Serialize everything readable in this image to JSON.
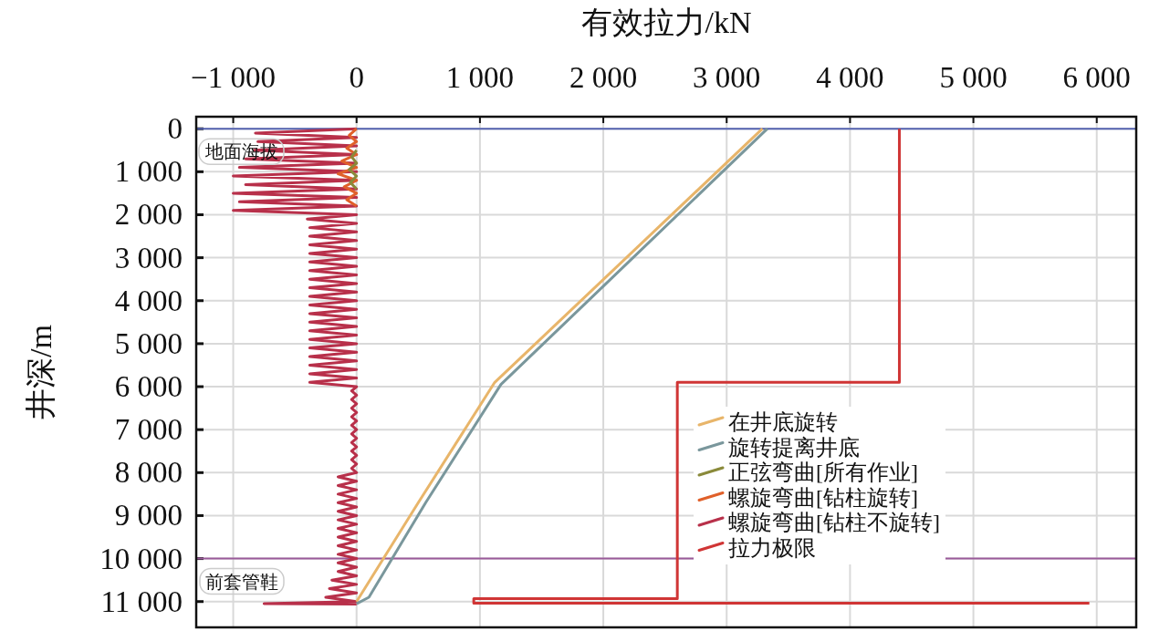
{
  "chart_data": {
    "type": "line",
    "xlabel": "有效拉力/kN",
    "ylabel": "井深/m",
    "xlim": [
      -1300,
      6320
    ],
    "ylim": [
      11600,
      -280
    ],
    "xticks": [
      {
        "value": -1000,
        "label": "−1 000"
      },
      0,
      {
        "value": 1000,
        "label": "1 000"
      },
      {
        "value": 2000,
        "label": "2 000"
      },
      {
        "value": 3000,
        "label": "3 000"
      },
      {
        "value": 4000,
        "label": "4 000"
      },
      {
        "value": 5000,
        "label": "5 000"
      },
      {
        "value": 6000,
        "label": "6 000"
      }
    ],
    "yticks": [
      0,
      {
        "value": 1000,
        "label": "1 000"
      },
      {
        "value": 2000,
        "label": "2 000"
      },
      {
        "value": 3000,
        "label": "3 000"
      },
      {
        "value": 4000,
        "label": "4 000"
      },
      {
        "value": 5000,
        "label": "5 000"
      },
      {
        "value": 6000,
        "label": "6 000"
      },
      {
        "value": 7000,
        "label": "7 000"
      },
      {
        "value": 8000,
        "label": "8 000"
      },
      {
        "value": 9000,
        "label": "9 000"
      },
      {
        "value": 10000,
        "label": "10 000"
      },
      {
        "value": 11000,
        "label": "11 000"
      }
    ],
    "grid": true,
    "legend": "bottom right",
    "ref_lines": [
      {
        "axis": "y",
        "value": 0,
        "label": "地面海拔",
        "color": "#5563b0"
      },
      {
        "axis": "y",
        "value": 10000,
        "label": "前套管鞋",
        "color": "#9a5a9a"
      }
    ],
    "series": [
      {
        "name": "在井底旋转",
        "color": "#e8b56a",
        "x": [
          3290,
          1120,
          500,
          0
        ],
        "values": [
          0,
          5900,
          8700,
          11000
        ]
      },
      {
        "name": "旋转提离井底",
        "color": "#7a979c",
        "x": [
          3330,
          1170,
          560,
          100,
          0
        ],
        "values": [
          0,
          5950,
          8700,
          10900,
          11050
        ]
      },
      {
        "name": "正弦弯曲[所有作业]",
        "color": "#8a8a3a",
        "x": [
          0,
          -40,
          0,
          -60,
          0,
          -50,
          0
        ],
        "values": [
          500,
          650,
          800,
          950,
          1100,
          1250,
          1400
        ]
      },
      {
        "name": "螺旋弯曲[钻柱旋转]",
        "color": "#e0602a",
        "x": [
          0,
          -60,
          0,
          -80,
          0,
          -120,
          0,
          -150,
          0,
          -100,
          0,
          -80,
          0
        ],
        "values": [
          0,
          150,
          300,
          450,
          600,
          750,
          900,
          1050,
          1200,
          1350,
          1500,
          1650,
          1800
        ]
      },
      {
        "name": "螺旋弯曲[钻柱不旋转]",
        "color": "#b8304a",
        "x": [
          0,
          -820,
          0,
          -800,
          0,
          -830,
          0,
          -900,
          0,
          -950,
          0,
          -1000,
          0,
          -900,
          0,
          -1000,
          0,
          -950,
          0,
          -1000,
          0,
          -400,
          0,
          -380,
          0,
          -380,
          0,
          -380,
          0,
          -380,
          0,
          -380,
          0,
          -380,
          0,
          -380,
          0,
          -380,
          0,
          -380,
          0,
          -380,
          0,
          -380,
          0,
          -380,
          0,
          -380,
          0,
          -380,
          0,
          -380,
          0,
          -380,
          0,
          -380,
          0,
          -380,
          0,
          -380,
          0,
          -40,
          0,
          -40,
          0,
          -40,
          0,
          -40,
          0,
          -40,
          0,
          -40,
          0,
          -40,
          0,
          -40,
          0,
          -40,
          0,
          -40,
          0,
          -150,
          0,
          -150,
          0,
          -150,
          0,
          -150,
          0,
          -150,
          0,
          -150,
          0,
          -150,
          0,
          -150,
          0,
          -150,
          0,
          -150,
          0,
          -150,
          0,
          -150,
          0,
          -200,
          0,
          -220,
          0,
          -250,
          0,
          -750,
          0
        ],
        "values": [
          0,
          100,
          200,
          300,
          400,
          500,
          600,
          700,
          800,
          900,
          1000,
          1100,
          1200,
          1300,
          1400,
          1500,
          1600,
          1700,
          1800,
          1900,
          2000,
          2100,
          2200,
          2300,
          2400,
          2500,
          2600,
          2700,
          2800,
          2900,
          3000,
          3100,
          3200,
          3300,
          3400,
          3500,
          3600,
          3700,
          3800,
          3900,
          4000,
          4100,
          4200,
          4300,
          4400,
          4500,
          4600,
          4700,
          4800,
          4900,
          5000,
          5100,
          5200,
          5300,
          5400,
          5500,
          5600,
          5700,
          5800,
          5900,
          6000,
          6100,
          6200,
          6300,
          6400,
          6500,
          6600,
          6700,
          6800,
          6900,
          7000,
          7100,
          7200,
          7300,
          7400,
          7500,
          7600,
          7700,
          7800,
          7900,
          8000,
          8100,
          8200,
          8300,
          8400,
          8500,
          8600,
          8700,
          8800,
          8900,
          9000,
          9100,
          9200,
          9300,
          9400,
          9500,
          9600,
          9700,
          9800,
          9900,
          10000,
          10100,
          10200,
          10300,
          10400,
          10500,
          10600,
          10700,
          10800,
          10900,
          11000,
          11050,
          11060
        ]
      },
      {
        "name": "拉力极限",
        "color": "#d03535",
        "x": [
          4400,
          4400,
          2600,
          2600,
          950,
          950,
          5940
        ],
        "values": [
          0,
          5900,
          5900,
          10930,
          10930,
          11040,
          11040
        ]
      }
    ]
  }
}
